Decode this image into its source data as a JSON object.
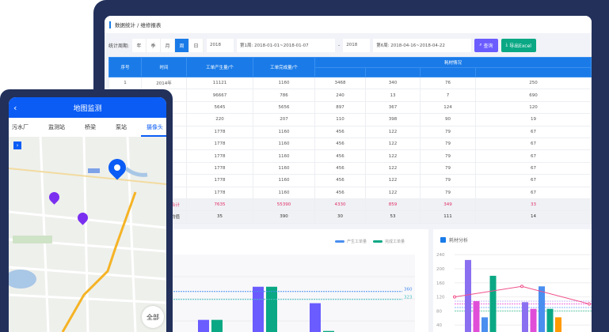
{
  "breadcrumb": "数据统计 / 维修报表",
  "filter": {
    "label": "统计周期:",
    "periods": [
      "年",
      "季",
      "月",
      "周",
      "日"
    ],
    "active": "周",
    "year1": "2018",
    "week1": "第1周: 2018-01-01~2018-01-07",
    "sep": "-",
    "year2": "2018",
    "week2": "第6周: 2018-04-16~2018-04-22",
    "query": "查询",
    "export": "导出Excel"
  },
  "table": {
    "headers": [
      "序号",
      "时间",
      "工单产生量/个",
      "工单完成量/个",
      "耗材情况"
    ],
    "rows": [
      [
        "1",
        "2014年",
        "11121",
        "1160",
        "3468",
        "340",
        "76",
        "250"
      ],
      [
        "",
        "",
        "96667",
        "786",
        "240",
        "13",
        "7",
        "690"
      ],
      [
        "",
        "",
        "5645",
        "5656",
        "897",
        "367",
        "124",
        "120"
      ],
      [
        "",
        "",
        "220",
        "207",
        "110",
        "398",
        "90",
        "19"
      ],
      [
        "",
        "",
        "1778",
        "1160",
        "456",
        "122",
        "79",
        "67"
      ],
      [
        "",
        "",
        "1778",
        "1160",
        "456",
        "122",
        "79",
        "67"
      ],
      [
        "",
        "",
        "1778",
        "1160",
        "456",
        "122",
        "79",
        "67"
      ],
      [
        "",
        "",
        "1778",
        "1160",
        "456",
        "122",
        "79",
        "67"
      ],
      [
        "",
        "",
        "1778",
        "1160",
        "456",
        "122",
        "79",
        "67"
      ],
      [
        "",
        "",
        "1778",
        "1160",
        "456",
        "122",
        "79",
        "67"
      ]
    ],
    "total": [
      "合计",
      "7635",
      "55390",
      "4330",
      "859",
      "349",
      "33"
    ],
    "avg": [
      "平均值",
      "35",
      "390",
      "30",
      "53",
      "111",
      "14"
    ]
  },
  "chart_data": [
    {
      "type": "bar",
      "legend": [
        "产生工单量",
        "完成工单量"
      ],
      "colors": [
        "#6a5cff",
        "#0aa884"
      ],
      "series": [
        {
          "name": "产生工单量",
          "values": [
            null,
            382,
            227,
            382,
            305
          ]
        },
        {
          "name": "完成工单量",
          "values": [
            305,
            341,
            227,
            382,
            175
          ]
        }
      ],
      "reference_lines": [
        {
          "value": 360,
          "label": "360",
          "color": "#4a8ef0"
        },
        {
          "value": 323,
          "label": "323",
          "color": "#4ac0c0"
        }
      ],
      "ylim": [
        0,
        480
      ]
    },
    {
      "type": "bar",
      "title": "耗材分析",
      "yticks": [
        40,
        80,
        120,
        160,
        200,
        240
      ],
      "ylim": [
        0,
        260
      ],
      "colors": [
        "#8a6ff0",
        "#e04ed8",
        "#4a8ef0",
        "#0aa884",
        "#ff9a00"
      ],
      "groups": [
        [
          225,
          108,
          62,
          180,
          null
        ],
        [
          105,
          86,
          150,
          86,
          62
        ]
      ],
      "line": {
        "color": "#f0508a",
        "values": [
          120,
          150,
          100
        ]
      },
      "reference_lines": [
        108,
        100,
        90,
        80
      ]
    }
  ],
  "phone": {
    "title": "地图监测",
    "tabs": [
      "污水厂",
      "监测站",
      "桥梁",
      "泵站",
      "摄像头"
    ],
    "active": "摄像头",
    "all": "全部"
  }
}
